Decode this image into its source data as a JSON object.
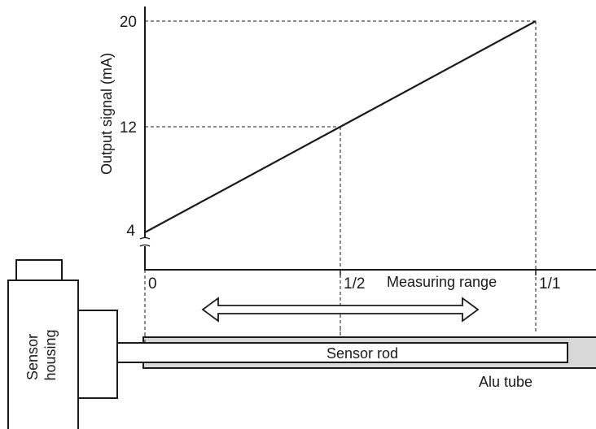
{
  "chart_data": {
    "type": "line",
    "ylabel": "Output signal (mA)",
    "xlabel": "Measuring range",
    "y_ticks": [
      "4",
      "12",
      "20"
    ],
    "x_ticks": [
      "0",
      "1/2",
      "1/1"
    ],
    "ylim": [
      4,
      20
    ],
    "y_axis_break": true,
    "grid": false,
    "series": [
      {
        "x": [
          0,
          0.5,
          1
        ],
        "y": [
          4,
          12,
          20
        ]
      }
    ],
    "guide_lines": "dashed"
  },
  "diagram": {
    "sensor_housing_label": "Sensor housing",
    "sensor_housing_lines": [
      "Sensor",
      "housing"
    ],
    "sensor_rod_label": "Sensor rod",
    "alu_tube_label": "Alu tube",
    "colors": {
      "line": "#1a1a1a",
      "tube_fill": "#d8d8d8",
      "background": "#ffffff"
    }
  }
}
